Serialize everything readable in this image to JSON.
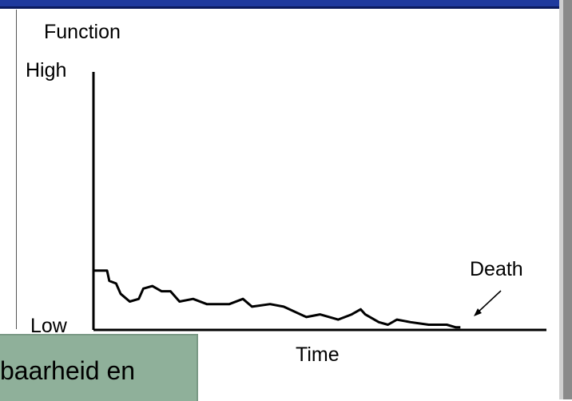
{
  "slide": {
    "caption": "baarheid en"
  },
  "chart_data": {
    "type": "line",
    "title": "",
    "ylabel": "Function",
    "xlabel": "Time",
    "y_tick_labels": [
      "High",
      "Low"
    ],
    "annotation": "Death",
    "ylim": [
      0,
      100
    ],
    "xlim": [
      0,
      100
    ],
    "series": [
      {
        "values": [
          [
            0,
            23
          ],
          [
            3,
            23
          ],
          [
            3.5,
            19
          ],
          [
            5,
            18
          ],
          [
            6,
            14
          ],
          [
            8,
            11
          ],
          [
            10,
            12
          ],
          [
            11,
            16
          ],
          [
            13,
            17
          ],
          [
            15,
            15
          ],
          [
            17,
            15
          ],
          [
            19,
            11
          ],
          [
            22,
            12
          ],
          [
            25,
            10
          ],
          [
            30,
            10
          ],
          [
            33,
            12
          ],
          [
            35,
            9
          ],
          [
            39,
            10
          ],
          [
            42,
            9
          ],
          [
            47,
            5
          ],
          [
            50,
            6
          ],
          [
            54,
            4
          ],
          [
            57,
            6
          ],
          [
            59,
            8
          ],
          [
            60,
            6
          ],
          [
            63,
            3
          ],
          [
            65,
            2
          ],
          [
            67,
            4
          ],
          [
            70,
            3
          ],
          [
            74,
            2
          ],
          [
            78,
            2
          ],
          [
            80,
            1
          ],
          [
            81,
            1
          ]
        ]
      }
    ]
  }
}
